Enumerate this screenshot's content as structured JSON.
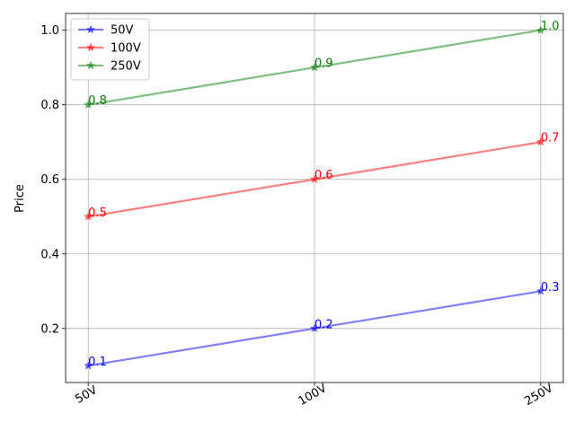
{
  "chart_data": {
    "type": "line",
    "title": "",
    "xlabel": "",
    "ylabel": "Price",
    "categories": [
      "50V",
      "100V",
      "250V"
    ],
    "ylim": [
      0.055,
      1.045
    ],
    "yticks": [
      0.2,
      0.4,
      0.6,
      0.8,
      1.0
    ],
    "ytick_labels": [
      "0.2",
      "0.4",
      "0.6",
      "0.8",
      "1.0"
    ],
    "grid": true,
    "legend_position": "top-left",
    "marker": "star",
    "series": [
      {
        "name": "50V",
        "color": "#0000ff",
        "values": [
          0.1,
          0.2,
          0.3
        ],
        "labels": [
          "0.1",
          "0.2",
          "0.3"
        ]
      },
      {
        "name": "100V",
        "color": "#ff0000",
        "values": [
          0.5,
          0.6,
          0.7
        ],
        "labels": [
          "0.5",
          "0.6",
          "0.7"
        ]
      },
      {
        "name": "250V",
        "color": "#008000",
        "values": [
          0.8,
          0.9,
          1.0
        ],
        "labels": [
          "0.8",
          "0.9",
          "1.0"
        ]
      }
    ]
  }
}
